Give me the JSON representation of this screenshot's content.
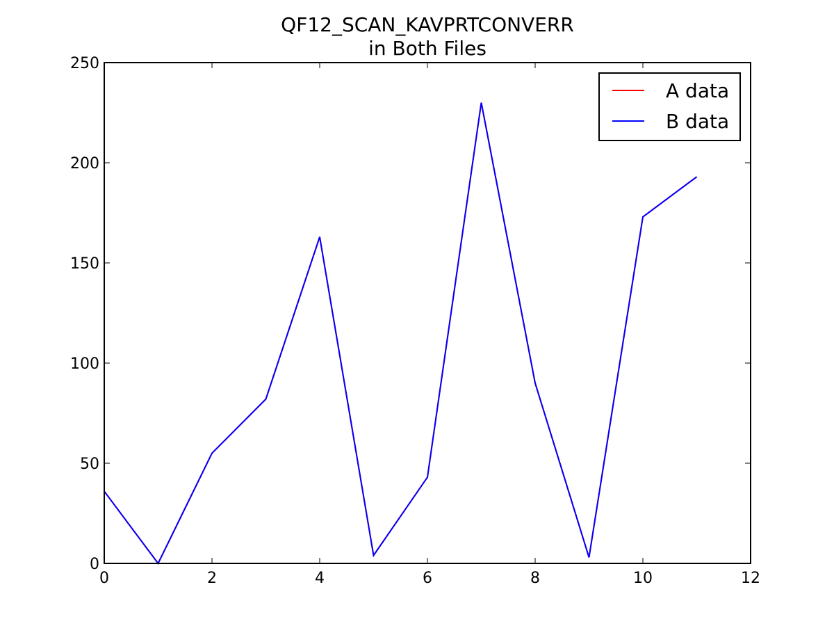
{
  "chart_data": {
    "type": "line",
    "title_line1": "QF12_SCAN_KAVPRTCONVERR",
    "title_line2": "in Both Files",
    "xlabel": "",
    "ylabel": "",
    "xlim": [
      0,
      12
    ],
    "ylim": [
      0,
      250
    ],
    "x_ticks": [
      0,
      2,
      4,
      6,
      8,
      10,
      12
    ],
    "y_ticks": [
      0,
      50,
      100,
      150,
      200,
      250
    ],
    "grid": false,
    "legend_position": "top-right",
    "x": [
      0,
      1,
      2,
      3,
      4,
      5,
      6,
      7,
      8,
      9,
      10,
      11
    ],
    "series": [
      {
        "name": "A data",
        "color": "#ff0000",
        "values": [
          36,
          0,
          55,
          82,
          163,
          4,
          43,
          230,
          90,
          3,
          173,
          193
        ]
      },
      {
        "name": "B data",
        "color": "#0000ff",
        "values": [
          36,
          0,
          55,
          82,
          163,
          4,
          43,
          230,
          90,
          3,
          173,
          193
        ]
      }
    ]
  }
}
